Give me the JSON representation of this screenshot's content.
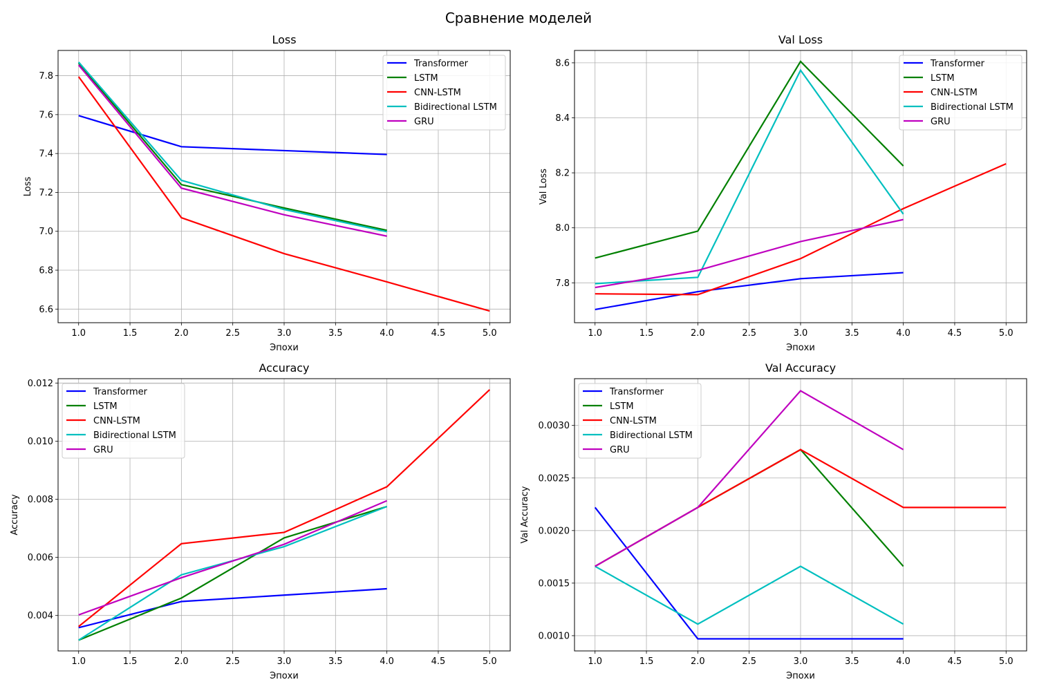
{
  "figure_title": "Сравнение моделей",
  "colors": {
    "Transformer": "#0000ff",
    "LSTM": "#008000",
    "CNN-LSTM": "#ff0000",
    "Bidirectional LSTM": "#00bfbf",
    "GRU": "#bf00bf",
    "grid": "#b0b0b0"
  },
  "chart_data": [
    {
      "type": "line",
      "title": "Loss",
      "xlabel": "Эпохи",
      "ylabel": "Loss",
      "xlim": [
        0.8,
        5.2
      ],
      "ylim": [
        6.53,
        7.93
      ],
      "xticks": [
        "1.0",
        "1.5",
        "2.0",
        "2.5",
        "3.0",
        "3.5",
        "4.0",
        "4.5",
        "5.0"
      ],
      "yticks": [
        "6.6",
        "6.8",
        "7.0",
        "7.2",
        "7.4",
        "7.6",
        "7.8"
      ],
      "grid": true,
      "legend": "upper right",
      "series": [
        {
          "name": "Transformer",
          "x": [
            1,
            2,
            3,
            4
          ],
          "y": [
            7.595,
            7.435,
            7.415,
            7.395
          ]
        },
        {
          "name": "LSTM",
          "x": [
            1,
            2,
            3,
            4
          ],
          "y": [
            7.865,
            7.24,
            7.12,
            7.005
          ]
        },
        {
          "name": "CNN-LSTM",
          "x": [
            1,
            2,
            3,
            4,
            5
          ],
          "y": [
            7.795,
            7.07,
            6.885,
            6.74,
            6.59
          ]
        },
        {
          "name": "Bidirectional LSTM",
          "x": [
            1,
            2,
            3,
            4
          ],
          "y": [
            7.87,
            7.262,
            7.112,
            6.998
          ]
        },
        {
          "name": "GRU",
          "x": [
            1,
            2,
            3,
            4
          ],
          "y": [
            7.855,
            7.222,
            7.085,
            6.975
          ]
        }
      ]
    },
    {
      "type": "line",
      "title": "Val Loss",
      "xlabel": "Эпохи",
      "ylabel": "Val Loss",
      "xlim": [
        0.8,
        5.2
      ],
      "ylim": [
        7.655,
        8.645
      ],
      "xticks": [
        "1.0",
        "1.5",
        "2.0",
        "2.5",
        "3.0",
        "3.5",
        "4.0",
        "4.5",
        "5.0"
      ],
      "yticks": [
        "7.8",
        "8.0",
        "8.2",
        "8.4",
        "8.6"
      ],
      "grid": true,
      "legend": "upper right",
      "series": [
        {
          "name": "Transformer",
          "x": [
            1,
            2,
            3,
            4
          ],
          "y": [
            7.703,
            7.768,
            7.815,
            7.837
          ]
        },
        {
          "name": "LSTM",
          "x": [
            1,
            2,
            3,
            4
          ],
          "y": [
            7.89,
            7.988,
            8.605,
            8.225
          ]
        },
        {
          "name": "CNN-LSTM",
          "x": [
            1,
            2,
            3,
            4,
            5
          ],
          "y": [
            7.76,
            7.757,
            7.888,
            8.07,
            8.233
          ]
        },
        {
          "name": "Bidirectional LSTM",
          "x": [
            1,
            2,
            3,
            4
          ],
          "y": [
            7.797,
            7.82,
            8.573,
            8.05
          ]
        },
        {
          "name": "GRU",
          "x": [
            1,
            2,
            3,
            4
          ],
          "y": [
            7.783,
            7.845,
            7.95,
            8.03
          ]
        }
      ]
    },
    {
      "type": "line",
      "title": "Accuracy",
      "xlabel": "Эпохи",
      "ylabel": "Accuracy",
      "xlim": [
        0.8,
        5.2
      ],
      "ylim": [
        0.00278,
        0.01215
      ],
      "xticks": [
        "1.0",
        "1.5",
        "2.0",
        "2.5",
        "3.0",
        "3.5",
        "4.0",
        "4.5",
        "5.0"
      ],
      "yticks": [
        "0.004",
        "0.006",
        "0.008",
        "0.010",
        "0.012"
      ],
      "grid": true,
      "legend": "upper left",
      "series": [
        {
          "name": "Transformer",
          "x": [
            1,
            2,
            3,
            4
          ],
          "y": [
            0.00358,
            0.00448,
            0.0047,
            0.00492
          ]
        },
        {
          "name": "LSTM",
          "x": [
            1,
            2,
            3,
            4
          ],
          "y": [
            0.00315,
            0.0046,
            0.00667,
            0.00775
          ]
        },
        {
          "name": "CNN-LSTM",
          "x": [
            1,
            2,
            3,
            4,
            5
          ],
          "y": [
            0.00362,
            0.00647,
            0.00686,
            0.00843,
            0.01177
          ]
        },
        {
          "name": "Bidirectional LSTM",
          "x": [
            1,
            2,
            3,
            4
          ],
          "y": [
            0.00315,
            0.0054,
            0.00637,
            0.00775
          ]
        },
        {
          "name": "GRU",
          "x": [
            1,
            2,
            3,
            4
          ],
          "y": [
            0.00402,
            0.0053,
            0.00645,
            0.00795
          ]
        }
      ]
    },
    {
      "type": "line",
      "title": "Val Accuracy",
      "xlabel": "Эпохи",
      "ylabel": "Val Accuracy",
      "xlim": [
        0.8,
        5.2
      ],
      "ylim": [
        0.000855,
        0.003445
      ],
      "xticks": [
        "1.0",
        "1.5",
        "2.0",
        "2.5",
        "3.0",
        "3.5",
        "4.0",
        "4.5",
        "5.0"
      ],
      "yticks": [
        "0.0010",
        "0.0015",
        "0.0020",
        "0.0025",
        "0.0030"
      ],
      "grid": true,
      "legend": "upper left",
      "series": [
        {
          "name": "Transformer",
          "x": [
            1,
            2,
            3,
            4
          ],
          "y": [
            0.00222,
            0.00097,
            0.00097,
            0.00097
          ]
        },
        {
          "name": "LSTM",
          "x": [
            1,
            2,
            3,
            4
          ],
          "y": [
            0.00166,
            0.00222,
            0.00277,
            0.00166
          ]
        },
        {
          "name": "CNN-LSTM",
          "x": [
            1,
            2,
            3,
            4,
            5
          ],
          "y": [
            0.00166,
            0.00222,
            0.00277,
            0.00222,
            0.00222
          ]
        },
        {
          "name": "Bidirectional LSTM",
          "x": [
            1,
            2,
            3,
            4
          ],
          "y": [
            0.00166,
            0.00111,
            0.00166,
            0.00111
          ]
        },
        {
          "name": "GRU",
          "x": [
            1,
            2,
            3,
            4
          ],
          "y": [
            0.00166,
            0.00222,
            0.00333,
            0.00277
          ]
        }
      ]
    }
  ]
}
